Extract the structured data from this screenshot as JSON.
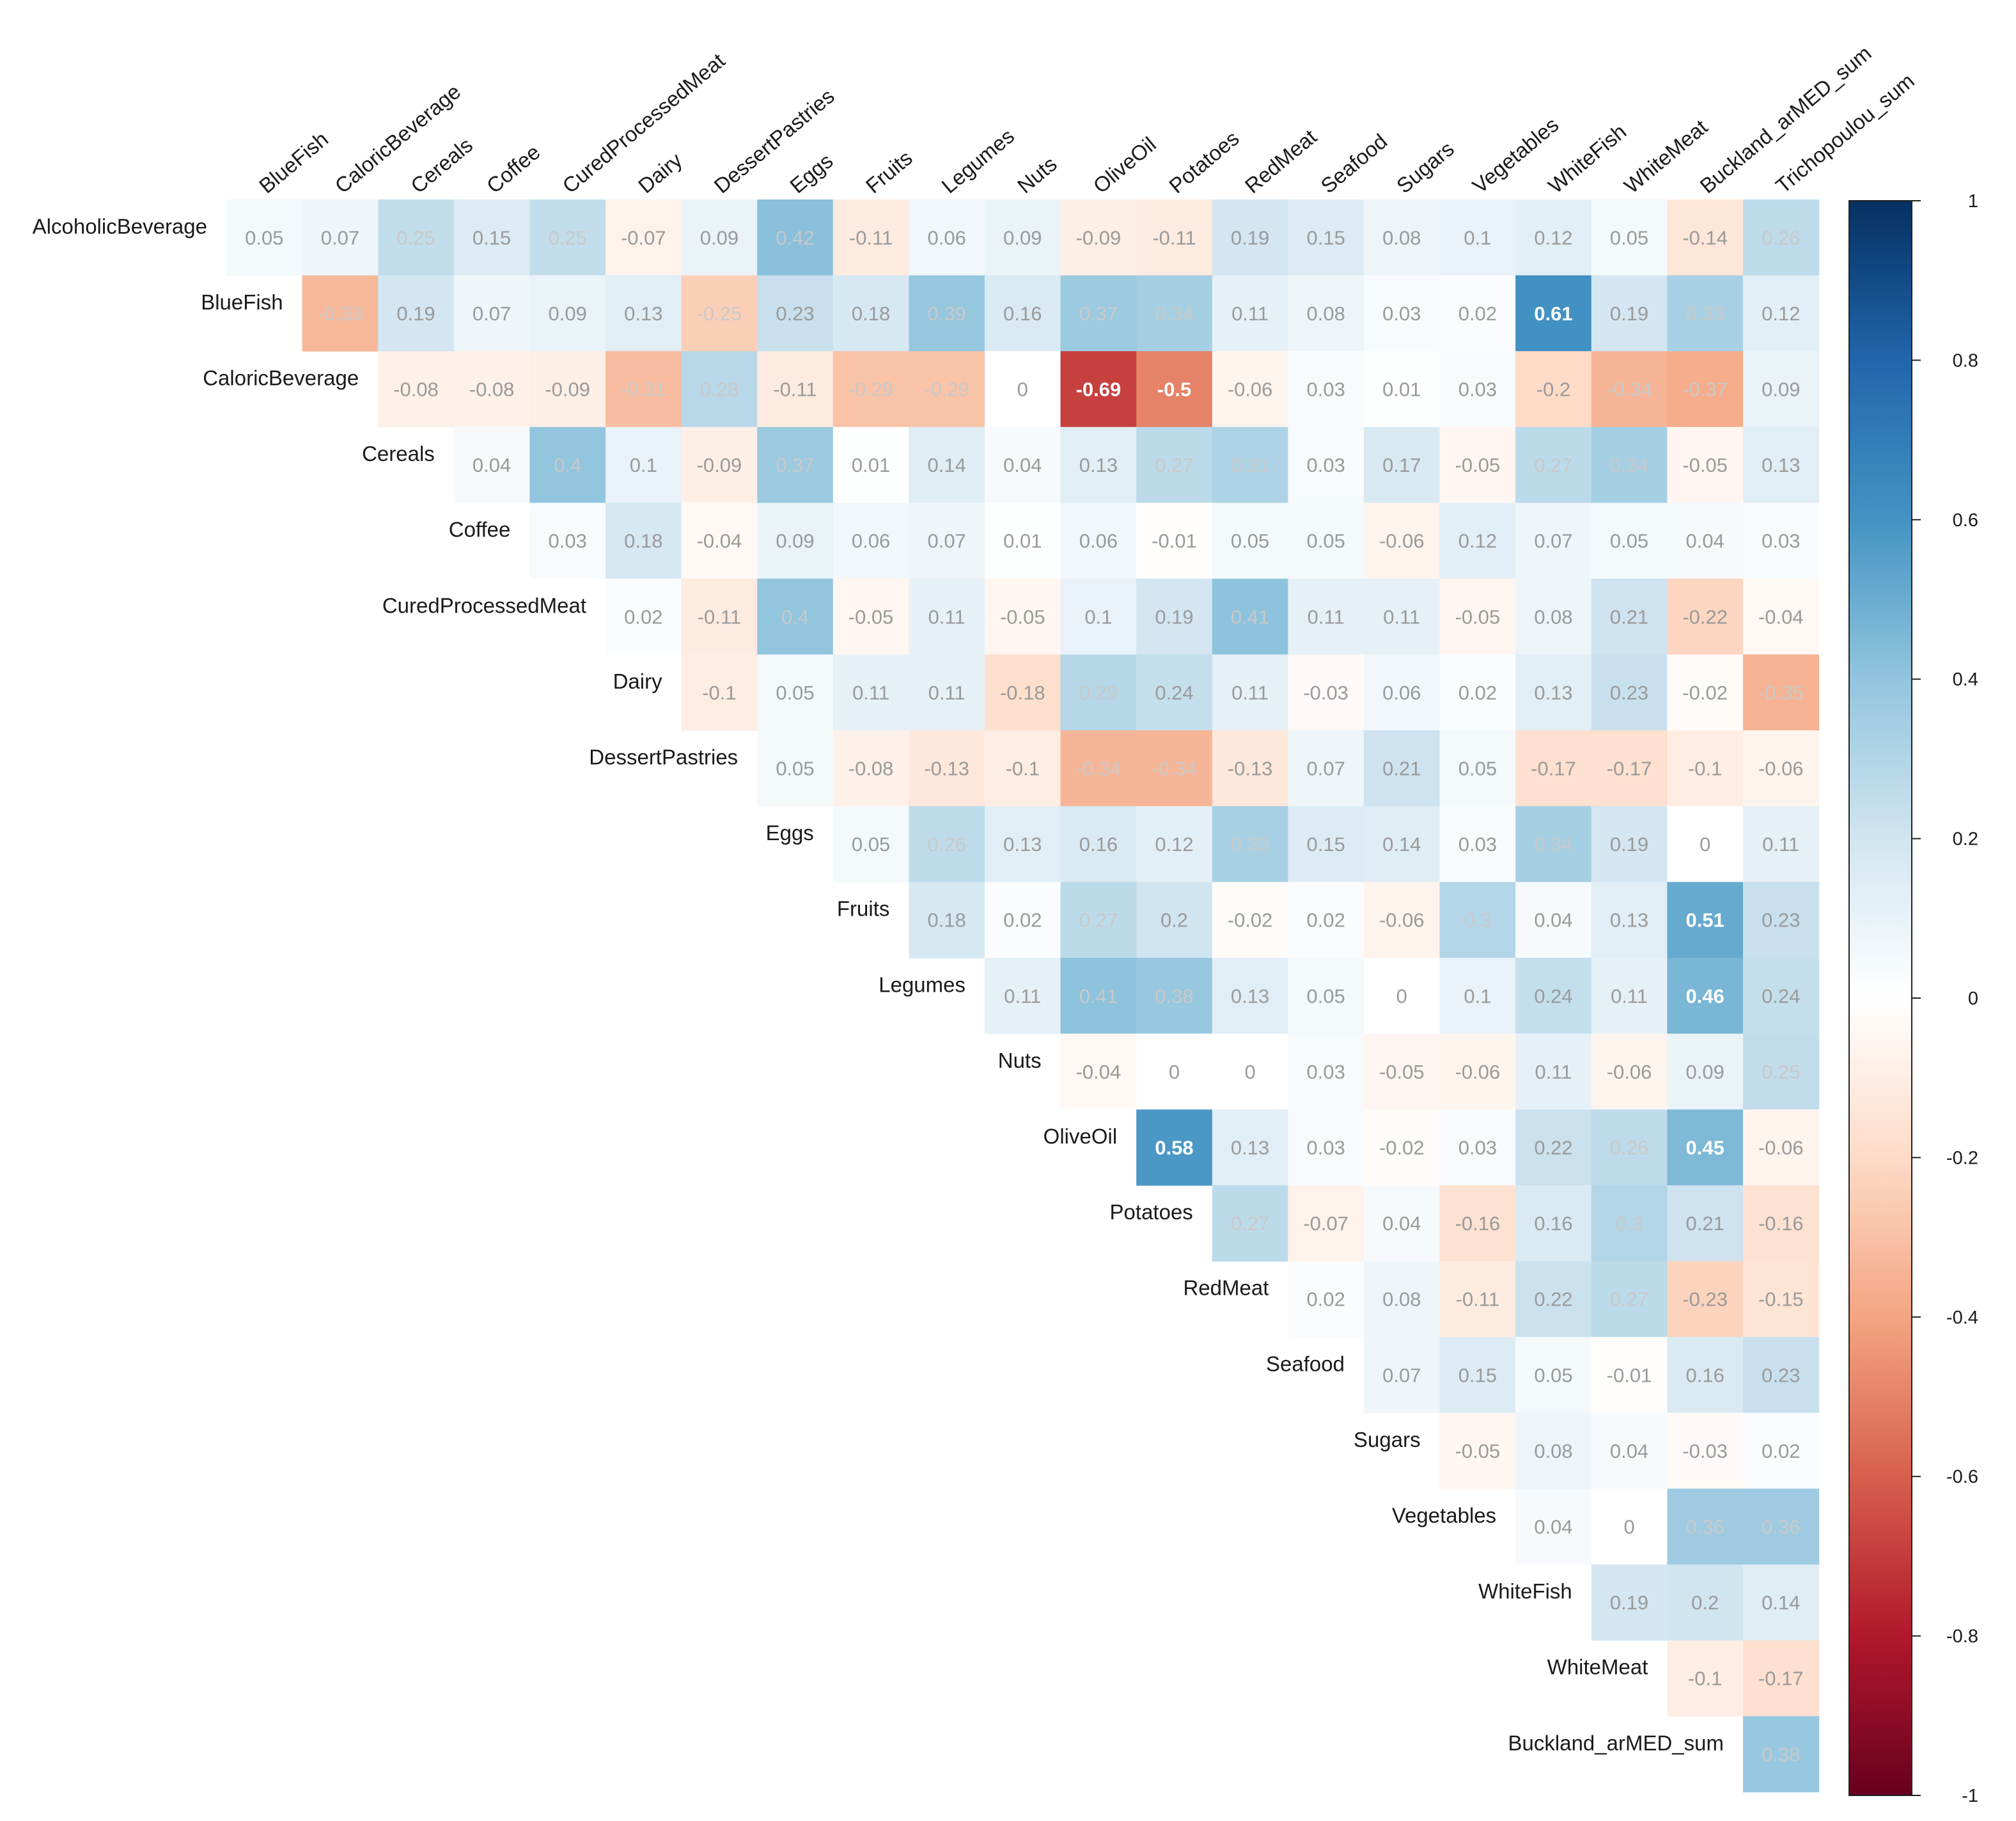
{
  "chart_data": {
    "type": "heatmap",
    "title": "",
    "row_labels": [
      "AlcoholicBeverage",
      "BlueFish",
      "CaloricBeverage",
      "Cereals",
      "Coffee",
      "CuredProcessedMeat",
      "Dairy",
      "DessertPastries",
      "Eggs",
      "Fruits",
      "Legumes",
      "Nuts",
      "OliveOil",
      "Potatoes",
      "RedMeat",
      "Seafood",
      "Sugars",
      "Vegetables",
      "WhiteFish",
      "WhiteMeat",
      "Buckland_arMED_sum"
    ],
    "col_labels": [
      "BlueFish",
      "CaloricBeverage",
      "Cereals",
      "Coffee",
      "CuredProcessedMeat",
      "Dairy",
      "DessertPastries",
      "Eggs",
      "Fruits",
      "Legumes",
      "Nuts",
      "OliveOil",
      "Potatoes",
      "RedMeat",
      "Seafood",
      "Sugars",
      "Vegetables",
      "WhiteFish",
      "WhiteMeat",
      "Buckland_arMED_sum",
      "Trichopoulou_sum"
    ],
    "values": [
      [
        0.05,
        0.07,
        0.25,
        0.15,
        0.25,
        -0.07,
        0.09,
        0.42,
        -0.11,
        0.06,
        0.09,
        -0.09,
        -0.11,
        0.19,
        0.15,
        0.08,
        0.1,
        0.12,
        0.05,
        -0.14,
        0.26
      ],
      [
        null,
        -0.33,
        0.19,
        0.07,
        0.09,
        0.13,
        -0.25,
        0.23,
        0.18,
        0.39,
        0.16,
        0.37,
        0.34,
        0.11,
        0.08,
        0.03,
        0.02,
        0.61,
        0.19,
        0.33,
        0.12
      ],
      [
        null,
        null,
        -0.08,
        -0.08,
        -0.09,
        -0.31,
        0.28,
        -0.11,
        -0.29,
        -0.29,
        0,
        -0.69,
        -0.5,
        -0.06,
        0.03,
        0.01,
        0.03,
        -0.2,
        -0.34,
        -0.37,
        0.09
      ],
      [
        null,
        null,
        null,
        0.04,
        0.4,
        0.1,
        -0.09,
        0.37,
        0.01,
        0.14,
        0.04,
        0.13,
        0.27,
        0.31,
        0.03,
        0.17,
        -0.05,
        0.27,
        0.34,
        -0.05,
        0.13
      ],
      [
        null,
        null,
        null,
        null,
        0.03,
        0.18,
        -0.04,
        0.09,
        0.06,
        0.07,
        0.01,
        0.06,
        -0.01,
        0.05,
        0.05,
        -0.06,
        0.12,
        0.07,
        0.05,
        0.04,
        0.03
      ],
      [
        null,
        null,
        null,
        null,
        null,
        0.02,
        -0.11,
        0.4,
        -0.05,
        0.11,
        -0.05,
        0.1,
        0.19,
        0.41,
        0.11,
        0.11,
        -0.05,
        0.08,
        0.21,
        -0.22,
        -0.04
      ],
      [
        null,
        null,
        null,
        null,
        null,
        null,
        -0.1,
        0.05,
        0.11,
        0.11,
        -0.18,
        0.29,
        0.24,
        0.11,
        -0.03,
        0.06,
        0.02,
        0.13,
        0.23,
        -0.02,
        -0.35
      ],
      [
        null,
        null,
        null,
        null,
        null,
        null,
        null,
        0.05,
        -0.08,
        -0.13,
        -0.1,
        -0.34,
        -0.34,
        -0.13,
        0.07,
        0.21,
        0.05,
        -0.17,
        -0.17,
        -0.1,
        -0.06
      ],
      [
        null,
        null,
        null,
        null,
        null,
        null,
        null,
        null,
        0.05,
        0.26,
        0.13,
        0.16,
        0.12,
        0.33,
        0.15,
        0.14,
        0.03,
        0.34,
        0.19,
        0,
        0.11
      ],
      [
        null,
        null,
        null,
        null,
        null,
        null,
        null,
        null,
        null,
        0.18,
        0.02,
        0.27,
        0.2,
        -0.02,
        0.02,
        -0.06,
        0.3,
        0.04,
        0.13,
        0.51,
        0.23
      ],
      [
        null,
        null,
        null,
        null,
        null,
        null,
        null,
        null,
        null,
        null,
        0.11,
        0.41,
        0.38,
        0.13,
        0.05,
        0,
        0.1,
        0.24,
        0.11,
        0.46,
        0.24
      ],
      [
        null,
        null,
        null,
        null,
        null,
        null,
        null,
        null,
        null,
        null,
        null,
        -0.04,
        0,
        0,
        0.03,
        -0.05,
        -0.06,
        0.11,
        -0.06,
        0.09,
        0.25
      ],
      [
        null,
        null,
        null,
        null,
        null,
        null,
        null,
        null,
        null,
        null,
        null,
        null,
        0.58,
        0.13,
        0.03,
        -0.02,
        0.03,
        0.22,
        0.26,
        0.45,
        -0.06
      ],
      [
        null,
        null,
        null,
        null,
        null,
        null,
        null,
        null,
        null,
        null,
        null,
        null,
        null,
        0.27,
        -0.07,
        0.04,
        -0.16,
        0.16,
        0.3,
        0.21,
        -0.16
      ],
      [
        null,
        null,
        null,
        null,
        null,
        null,
        null,
        null,
        null,
        null,
        null,
        null,
        null,
        null,
        0.02,
        0.08,
        -0.11,
        0.22,
        0.27,
        -0.23,
        -0.15
      ],
      [
        null,
        null,
        null,
        null,
        null,
        null,
        null,
        null,
        null,
        null,
        null,
        null,
        null,
        null,
        null,
        0.07,
        0.15,
        0.05,
        -0.01,
        0.16,
        0.23
      ],
      [
        null,
        null,
        null,
        null,
        null,
        null,
        null,
        null,
        null,
        null,
        null,
        null,
        null,
        null,
        null,
        null,
        -0.05,
        0.08,
        0.04,
        -0.03,
        0.02
      ],
      [
        null,
        null,
        null,
        null,
        null,
        null,
        null,
        null,
        null,
        null,
        null,
        null,
        null,
        null,
        null,
        null,
        null,
        0.04,
        0,
        0.36,
        0.36
      ],
      [
        null,
        null,
        null,
        null,
        null,
        null,
        null,
        null,
        null,
        null,
        null,
        null,
        null,
        null,
        null,
        null,
        null,
        null,
        0.19,
        0.2,
        0.14
      ],
      [
        null,
        null,
        null,
        null,
        null,
        null,
        null,
        null,
        null,
        null,
        null,
        null,
        null,
        null,
        null,
        null,
        null,
        null,
        null,
        -0.1,
        -0.17
      ],
      [
        null,
        null,
        null,
        null,
        null,
        null,
        null,
        null,
        null,
        null,
        null,
        null,
        null,
        null,
        null,
        null,
        null,
        null,
        null,
        null,
        0.38
      ]
    ],
    "value_range": [
      -1,
      1
    ],
    "colorbar_ticks": [
      "1",
      "0.8",
      "0.6",
      "0.4",
      "0.2",
      "0",
      "-0.2",
      "-0.4",
      "-0.6",
      "-0.8",
      "-1"
    ],
    "colors": {
      "strong_negative": "#67001f",
      "negative": "#d6604d",
      "neutral": "#ffffff",
      "positive": "#4393c3",
      "strong_positive": "#053061",
      "label_text_strong": "#ffffff",
      "label_text_weak": "#9a9a9a",
      "label_text_mid": "#c9c9c9"
    },
    "legend": "right",
    "grid": false
  }
}
